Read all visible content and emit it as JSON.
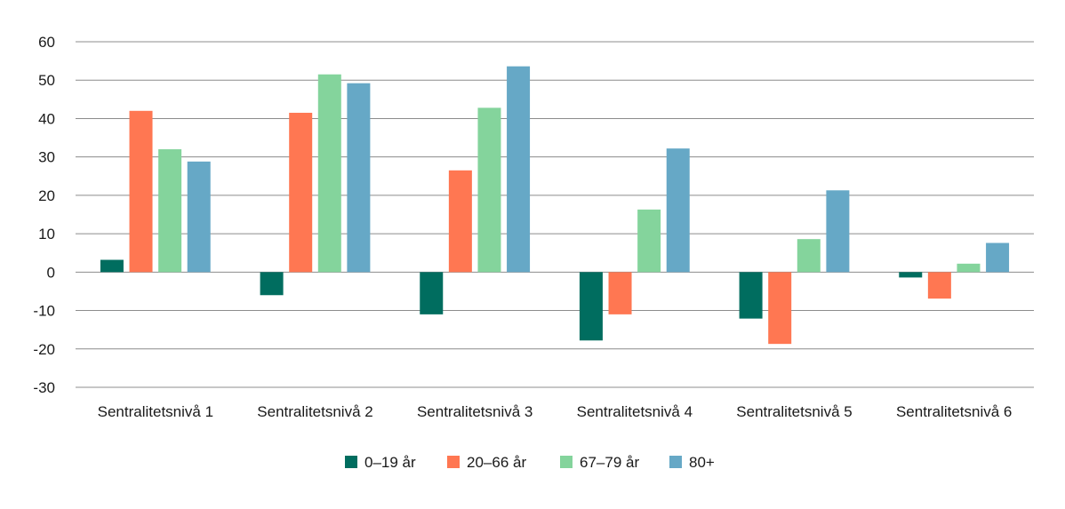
{
  "chart_data": {
    "type": "bar",
    "title": "",
    "xlabel": "",
    "ylabel": "",
    "categories": [
      "Sentralitetsnivå 1",
      "Sentralitetsnivå 2",
      "Sentralitetsnivå 3",
      "Sentralitetsnivå 4",
      "Sentralitetsnivå 5",
      "Sentralitetsnivå 6"
    ],
    "series": [
      {
        "name": "0–19 år",
        "color": "#006d5f",
        "values": [
          3.2,
          -6.0,
          -11.0,
          -17.8,
          -12.1,
          -1.4
        ]
      },
      {
        "name": "20–66 år",
        "color": "#ff7752",
        "values": [
          42.0,
          41.5,
          26.5,
          -11.0,
          -18.7,
          -6.9
        ]
      },
      {
        "name": "67–79 år",
        "color": "#84d49c",
        "values": [
          32.0,
          51.5,
          42.8,
          16.3,
          8.6,
          2.2
        ]
      },
      {
        "name": "80+",
        "color": "#66a8c6",
        "values": [
          28.8,
          49.2,
          53.6,
          32.2,
          21.3,
          7.6
        ]
      }
    ],
    "ylim": [
      -30,
      60
    ],
    "yticks": [
      60,
      50,
      40,
      30,
      20,
      10,
      0,
      -10,
      -20,
      -30
    ],
    "ytick_labels": [
      "60",
      "50",
      "40",
      "30",
      "20",
      "10",
      "0",
      "-10",
      "-20",
      "-30"
    ],
    "grid": true,
    "legend_position": "bottom-center"
  }
}
